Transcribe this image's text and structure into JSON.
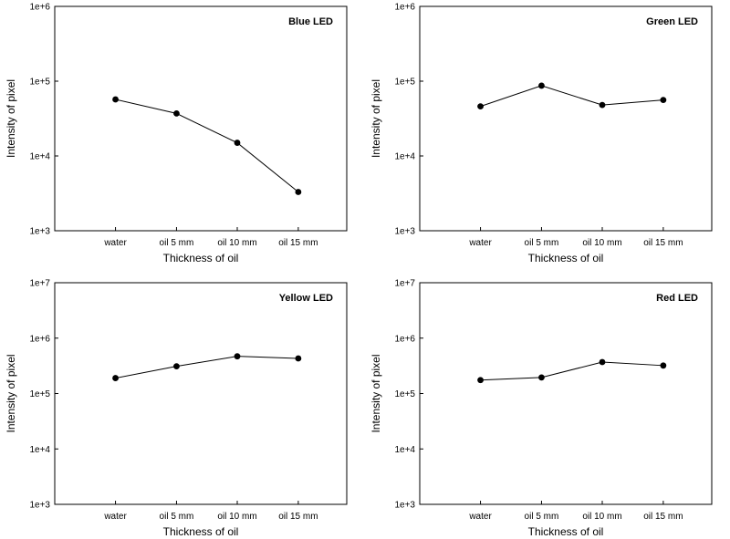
{
  "chart_data": [
    {
      "type": "line",
      "title": "Blue LED",
      "xlabel": "Thickness of oil",
      "ylabel": "Intensity of pixel",
      "yscale": "log",
      "ylim": [
        1000,
        1000000
      ],
      "ytick_labels": [
        "1e+3",
        "1e+4",
        "1e+5",
        "1e+6"
      ],
      "categories": [
        "water",
        "oil 5 mm",
        "oil 10 mm",
        "oil 15 mm"
      ],
      "values": [
        57000,
        37000,
        15000,
        3300
      ],
      "title_position": "top-right"
    },
    {
      "type": "line",
      "title": "Green LED",
      "xlabel": "Thickness of oil",
      "ylabel": "Intensity of pixel",
      "yscale": "log",
      "ylim": [
        1000,
        1000000
      ],
      "ytick_labels": [
        "1e+3",
        "1e+4",
        "1e+5",
        "1e+6"
      ],
      "categories": [
        "water",
        "oil 5 mm",
        "oil 10 mm",
        "oil 15 mm"
      ],
      "values": [
        46000,
        87000,
        48000,
        56000
      ],
      "title_position": "top-right"
    },
    {
      "type": "line",
      "title": "Yellow LED",
      "xlabel": "Thickness of oil",
      "ylabel": "Intensity of pixel",
      "yscale": "log",
      "ylim": [
        1000,
        10000000
      ],
      "ytick_labels": [
        "1e+3",
        "1e+4",
        "1e+5",
        "1e+6",
        "1e+7"
      ],
      "categories": [
        "water",
        "oil 5 mm",
        "oil 10 mm",
        "oil 15 mm"
      ],
      "values": [
        190000,
        310000,
        470000,
        430000
      ],
      "title_position": "top-right"
    },
    {
      "type": "line",
      "title": "Red LED",
      "xlabel": "Thickness of oil",
      "ylabel": "Intensity of pixel",
      "yscale": "log",
      "ylim": [
        1000,
        10000000
      ],
      "ytick_labels": [
        "1e+3",
        "1e+4",
        "1e+5",
        "1e+6",
        "1e+7"
      ],
      "categories": [
        "water",
        "oil 5 mm",
        "oil 10 mm",
        "oil 15 mm"
      ],
      "values": [
        175000,
        195000,
        370000,
        320000
      ],
      "title_position": "top-right"
    }
  ]
}
